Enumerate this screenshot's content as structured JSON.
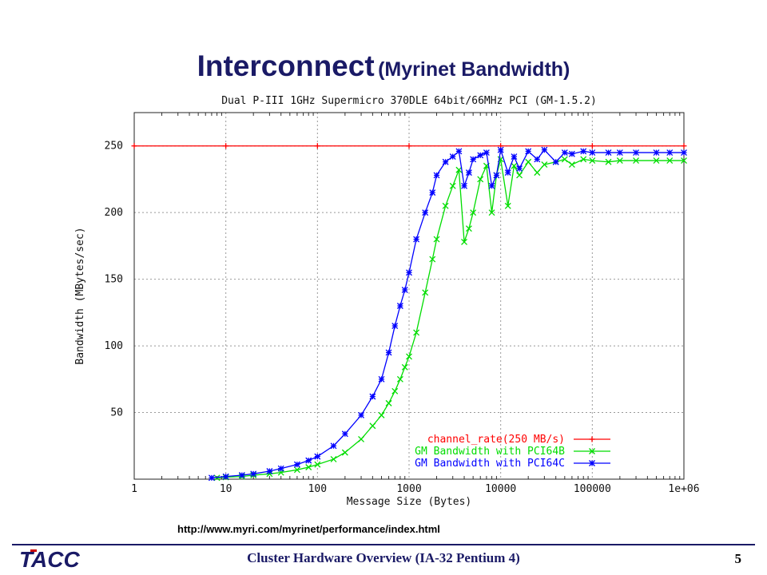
{
  "slide": {
    "title_main": "Interconnect",
    "title_sub": "(Myrinet Bandwidth)",
    "source_url": "http://www.myri.com/myrinet/performance/index.html",
    "footer_text": "Cluster Hardware Overview (IA-32 Pentium 4)",
    "page_number": "5",
    "logo_text": "TACC",
    "title_color": "#1a1a66"
  },
  "chart_data": {
    "type": "line",
    "title": "Dual P-III 1GHz Supermicro 370DLE 64bit/66MHz PCI (GM-1.5.2)",
    "xlabel": "Message Size (Bytes)",
    "ylabel": "Bandwidth (MBytes/sec)",
    "xscale": "log",
    "xlim": [
      1,
      1000000
    ],
    "ylim": [
      0,
      275
    ],
    "x_ticks": [
      "1",
      "10",
      "100",
      "1000",
      "10000",
      "100000",
      "1e+06"
    ],
    "y_ticks": [
      "50",
      "100",
      "150",
      "200",
      "250"
    ],
    "grid": true,
    "legend_position": "bottom-right",
    "series": [
      {
        "name": "channel_rate(250 MB/s)",
        "color": "#ff0000",
        "marker": "plus",
        "x": [
          1,
          10,
          100,
          1000,
          10000,
          100000,
          1000000
        ],
        "values": [
          250,
          250,
          250,
          250,
          250,
          250,
          250
        ]
      },
      {
        "name": "GM Bandwidth with PCI64B",
        "color": "#00dd00",
        "marker": "x",
        "x": [
          8,
          10,
          15,
          20,
          30,
          40,
          60,
          80,
          100,
          150,
          200,
          300,
          400,
          500,
          600,
          700,
          800,
          900,
          1000,
          1200,
          1500,
          1800,
          2000,
          2500,
          3000,
          3500,
          4000,
          4500,
          5000,
          6000,
          7000,
          8000,
          9000,
          10000,
          12000,
          14000,
          16000,
          20000,
          25000,
          30000,
          40000,
          50000,
          60000,
          80000,
          100000,
          150000,
          200000,
          300000,
          500000,
          700000,
          1000000
        ],
        "values": [
          1,
          1.5,
          2,
          3,
          4,
          5,
          7,
          9,
          11,
          15,
          20,
          30,
          40,
          48,
          57,
          66,
          75,
          84,
          92,
          110,
          140,
          165,
          180,
          205,
          220,
          232,
          178,
          188,
          200,
          225,
          235,
          200,
          228,
          240,
          205,
          235,
          228,
          238,
          230,
          236,
          238,
          240,
          236,
          240,
          239,
          238,
          239,
          239,
          239,
          239,
          239
        ]
      },
      {
        "name": "GM Bandwidth with PCI64C",
        "color": "#0000ff",
        "marker": "star",
        "x": [
          7,
          10,
          15,
          20,
          30,
          40,
          60,
          80,
          100,
          150,
          200,
          300,
          400,
          500,
          600,
          700,
          800,
          900,
          1000,
          1200,
          1500,
          1800,
          2000,
          2500,
          3000,
          3500,
          4000,
          4500,
          5000,
          6000,
          7000,
          8000,
          9000,
          10000,
          12000,
          14000,
          16000,
          20000,
          25000,
          30000,
          40000,
          50000,
          60000,
          80000,
          100000,
          150000,
          200000,
          300000,
          500000,
          700000,
          1000000
        ],
        "values": [
          1,
          2,
          3,
          4,
          6,
          8,
          11,
          14,
          17,
          25,
          34,
          48,
          62,
          75,
          95,
          115,
          130,
          142,
          155,
          180,
          200,
          215,
          228,
          238,
          242,
          246,
          220,
          230,
          240,
          243,
          245,
          220,
          228,
          247,
          230,
          242,
          233,
          246,
          240,
          247,
          238,
          245,
          244,
          246,
          245,
          245,
          245,
          245,
          245,
          245,
          245
        ]
      }
    ]
  }
}
